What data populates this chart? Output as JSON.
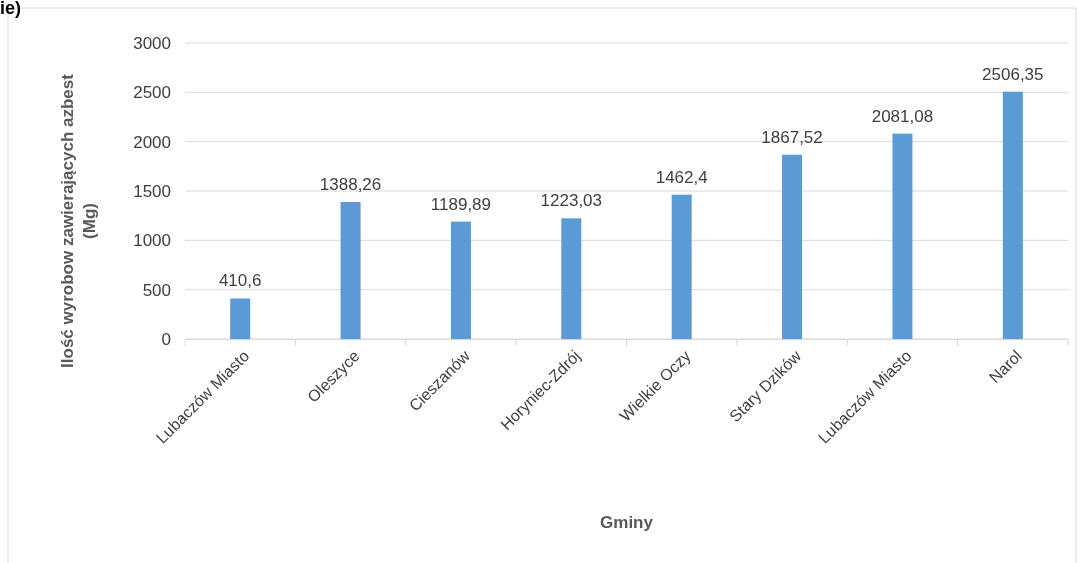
{
  "chart_data": {
    "type": "bar",
    "xlabel": "Gminy",
    "ylabel": "Ilość wyrobow zawierających azbest (Mg)",
    "annotations": [
      "ie)"
    ],
    "categories": [
      "Lubaczów Miasto",
      "Oleszyce",
      "Cieszanów",
      "Horyniec-Zdrój",
      "Wielkie Oczy",
      "Stary Dzików",
      "Lubaczów Miasto",
      "Narol"
    ],
    "values": [
      410.6,
      1388.26,
      1189.89,
      1223.03,
      1462.4,
      1867.52,
      2081.08,
      2506.35
    ],
    "value_labels": [
      "410,6",
      "1388,26",
      "1189,89",
      "1223,03",
      "1462,4",
      "1867,52",
      "2081,08",
      "2506,35"
    ],
    "color": "#5b9bd5",
    "ylim": [
      0,
      3000
    ],
    "yticks": [
      0,
      500,
      1000,
      1500,
      2000,
      2500,
      3000
    ],
    "grid": "y"
  }
}
